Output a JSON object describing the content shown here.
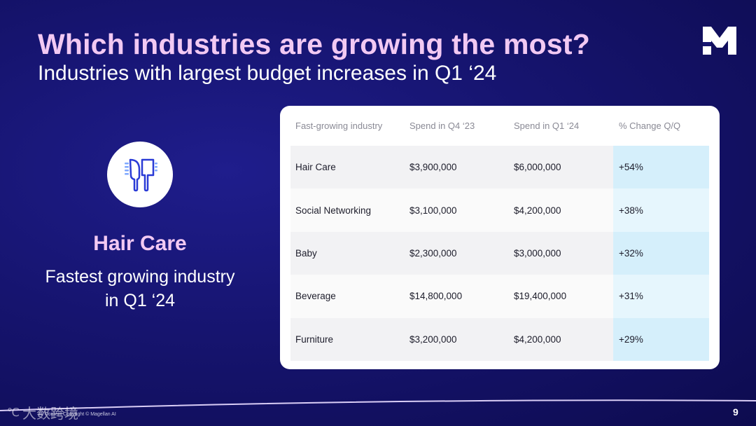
{
  "slide": {
    "title": "Which industries are growing the most?",
    "subtitle": "Industries with largest budget increases in Q1 ‘24",
    "page_number": "9",
    "footer": "All Content Copyright © Magellan AI",
    "watermark": "大数跨境",
    "logo_icon": "magellan-m-logo"
  },
  "hero": {
    "icon": "comb-icon",
    "name": "Hair Care",
    "description": "Fastest growing industry in Q1 ‘24"
  },
  "table": {
    "headers": [
      "Fast-growing industry",
      "Spend in Q4 ‘23",
      "Spend in Q1 ‘24",
      "% Change Q/Q"
    ],
    "rows": [
      [
        "Hair Care",
        "$3,900,000",
        "$6,000,000",
        "+54%"
      ],
      [
        "Social Networking",
        "$3,100,000",
        "$4,200,000",
        "+38%"
      ],
      [
        "Baby",
        "$2,300,000",
        "$3,000,000",
        "+32%"
      ],
      [
        "Beverage",
        "$14,800,000",
        "$19,400,000",
        "+31%"
      ],
      [
        "Furniture",
        "$3,200,000",
        "$4,200,000",
        "+29%"
      ]
    ]
  },
  "colors": {
    "accent_pink": "#f2c9f3",
    "background_navy": "#16146f",
    "highlight_blue": "#d5effb",
    "icon_blue": "#2a3bd6"
  }
}
